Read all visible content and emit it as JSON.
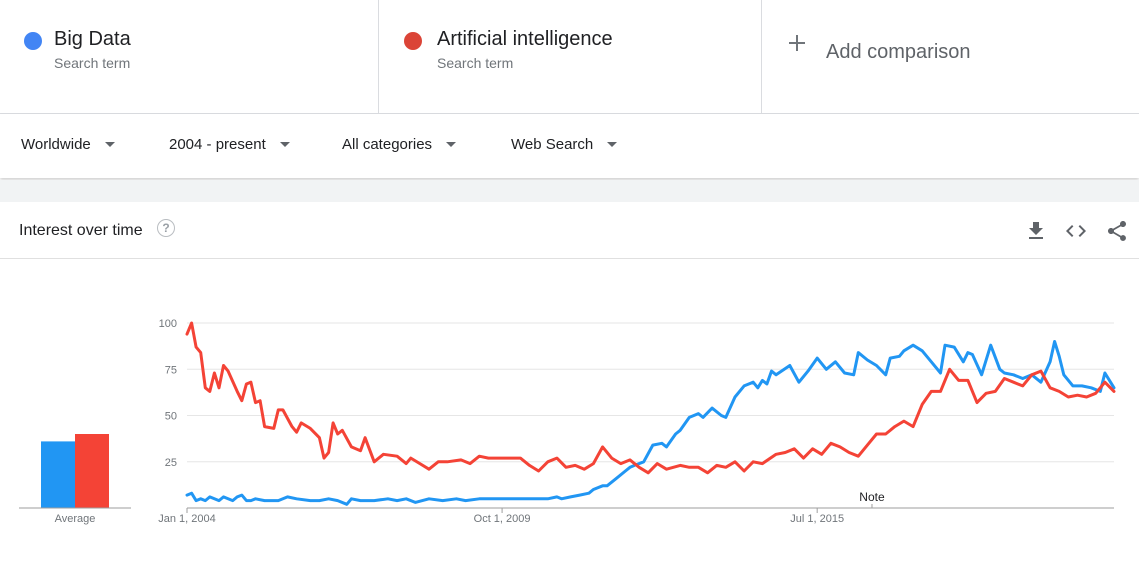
{
  "terms": [
    {
      "name": "Big Data",
      "subtitle": "Search term",
      "color": "#4285f4"
    },
    {
      "name": "Artificial intelligence",
      "subtitle": "Search term",
      "color": "#db4437"
    }
  ],
  "add_comparison": "Add comparison",
  "filters": {
    "region": "Worldwide",
    "time": "2004 - present",
    "category": "All categories",
    "search_type": "Web Search"
  },
  "card": {
    "title": "Interest over time",
    "help_symbol": "?"
  },
  "icons": {
    "help": "help-icon",
    "download": "download-icon",
    "embed": "embed-code-icon",
    "share": "share-icon"
  },
  "chart_data": {
    "type": "line",
    "x_unit": "month",
    "x_start": "2004-01",
    "x_end": "2019-01",
    "ylim": [
      0,
      100
    ],
    "yticks": [
      25,
      50,
      75,
      100
    ],
    "xticks": [
      {
        "label": "Jan 1, 2004",
        "month": "2004-01"
      },
      {
        "label": "Oct 1, 2009",
        "month": "2009-10"
      },
      {
        "label": "Jul 1, 2015",
        "month": "2015-07"
      }
    ],
    "annotation": {
      "label": "Note",
      "month": "2016-07"
    },
    "average_label": "Average",
    "averages": [
      {
        "series": "Big Data",
        "value": 36
      },
      {
        "series": "Artificial intelligence",
        "value": 40
      }
    ],
    "grid": true,
    "series": [
      {
        "name": "Big Data",
        "color": "#2196f3",
        "points": [
          [
            "2004-01",
            7
          ],
          [
            "2004-02",
            8
          ],
          [
            "2004-03",
            4
          ],
          [
            "2004-04",
            5
          ],
          [
            "2004-05",
            4
          ],
          [
            "2004-06",
            6
          ],
          [
            "2004-07",
            5
          ],
          [
            "2004-08",
            4
          ],
          [
            "2004-09",
            6
          ],
          [
            "2004-10",
            5
          ],
          [
            "2004-11",
            4
          ],
          [
            "2004-12",
            6
          ],
          [
            "2005-01",
            7
          ],
          [
            "2005-02",
            4
          ],
          [
            "2005-03",
            4
          ],
          [
            "2005-04",
            5
          ],
          [
            "2005-06",
            4
          ],
          [
            "2005-09",
            4
          ],
          [
            "2005-11",
            6
          ],
          [
            "2006-01",
            5
          ],
          [
            "2006-04",
            4
          ],
          [
            "2006-06",
            4
          ],
          [
            "2006-08",
            5
          ],
          [
            "2006-10",
            4
          ],
          [
            "2006-12",
            2
          ],
          [
            "2007-01",
            5
          ],
          [
            "2007-03",
            4
          ],
          [
            "2007-06",
            4
          ],
          [
            "2007-09",
            5
          ],
          [
            "2007-11",
            4
          ],
          [
            "2008-01",
            5
          ],
          [
            "2008-03",
            3
          ],
          [
            "2008-06",
            5
          ],
          [
            "2008-09",
            4
          ],
          [
            "2008-12",
            5
          ],
          [
            "2009-02",
            4
          ],
          [
            "2009-05",
            5
          ],
          [
            "2009-08",
            5
          ],
          [
            "2009-11",
            5
          ],
          [
            "2010-02",
            5
          ],
          [
            "2010-05",
            5
          ],
          [
            "2010-08",
            5
          ],
          [
            "2010-10",
            6
          ],
          [
            "2010-11",
            5
          ],
          [
            "2011-01",
            6
          ],
          [
            "2011-03",
            7
          ],
          [
            "2011-05",
            8
          ],
          [
            "2011-06",
            10
          ],
          [
            "2011-08",
            12
          ],
          [
            "2011-09",
            12
          ],
          [
            "2011-11",
            16
          ],
          [
            "2012-01",
            20
          ],
          [
            "2012-02",
            22
          ],
          [
            "2012-03",
            23
          ],
          [
            "2012-05",
            25
          ],
          [
            "2012-07",
            34
          ],
          [
            "2012-09",
            35
          ],
          [
            "2012-10",
            33
          ],
          [
            "2012-12",
            40
          ],
          [
            "2013-01",
            42
          ],
          [
            "2013-03",
            49
          ],
          [
            "2013-05",
            51
          ],
          [
            "2013-06",
            49
          ],
          [
            "2013-08",
            54
          ],
          [
            "2013-10",
            50
          ],
          [
            "2013-11",
            49
          ],
          [
            "2014-01",
            60
          ],
          [
            "2014-03",
            66
          ],
          [
            "2014-05",
            68
          ],
          [
            "2014-06",
            65
          ],
          [
            "2014-07",
            69
          ],
          [
            "2014-08",
            67
          ],
          [
            "2014-09",
            74
          ],
          [
            "2014-10",
            72
          ],
          [
            "2015-01",
            77
          ],
          [
            "2015-03",
            68
          ],
          [
            "2015-05",
            74
          ],
          [
            "2015-07",
            81
          ],
          [
            "2015-09",
            75
          ],
          [
            "2015-11",
            79
          ],
          [
            "2016-01",
            73
          ],
          [
            "2016-03",
            72
          ],
          [
            "2016-04",
            84
          ],
          [
            "2016-06",
            80
          ],
          [
            "2016-08",
            77
          ],
          [
            "2016-10",
            72
          ],
          [
            "2016-11",
            81
          ],
          [
            "2017-01",
            82
          ],
          [
            "2017-02",
            85
          ],
          [
            "2017-04",
            88
          ],
          [
            "2017-06",
            85
          ],
          [
            "2017-08",
            79
          ],
          [
            "2017-10",
            73
          ],
          [
            "2017-11",
            88
          ],
          [
            "2018-01",
            87
          ],
          [
            "2018-03",
            79
          ],
          [
            "2018-04",
            84
          ],
          [
            "2018-05",
            83
          ],
          [
            "2018-07",
            72
          ],
          [
            "2018-09",
            88
          ],
          [
            "2018-11",
            75
          ],
          [
            "2018-12",
            73
          ],
          [
            "2019-02",
            72
          ],
          [
            "2019-04",
            70
          ],
          [
            "2019-06",
            72
          ],
          [
            "2019-08",
            68
          ],
          [
            "2019-10",
            79
          ],
          [
            "2019-11",
            90
          ],
          [
            "2019-12",
            82
          ],
          [
            "2020-01",
            72
          ],
          [
            "2020-03",
            66
          ],
          [
            "2020-05",
            66
          ],
          [
            "2020-07",
            65
          ],
          [
            "2020-09",
            63
          ],
          [
            "2020-10",
            73
          ],
          [
            "2020-12",
            65
          ]
        ]
      },
      {
        "name": "Artificial intelligence",
        "color": "#f44336",
        "points": [
          [
            "2004-01",
            94
          ],
          [
            "2004-02",
            100
          ],
          [
            "2004-03",
            87
          ],
          [
            "2004-04",
            84
          ],
          [
            "2004-05",
            65
          ],
          [
            "2004-06",
            63
          ],
          [
            "2004-07",
            73
          ],
          [
            "2004-08",
            65
          ],
          [
            "2004-09",
            77
          ],
          [
            "2004-10",
            74
          ],
          [
            "2004-12",
            63
          ],
          [
            "2005-01",
            58
          ],
          [
            "2005-02",
            67
          ],
          [
            "2005-03",
            68
          ],
          [
            "2005-04",
            57
          ],
          [
            "2005-05",
            58
          ],
          [
            "2005-06",
            44
          ],
          [
            "2005-08",
            43
          ],
          [
            "2005-09",
            53
          ],
          [
            "2005-10",
            53
          ],
          [
            "2005-12",
            44
          ],
          [
            "2006-01",
            41
          ],
          [
            "2006-02",
            46
          ],
          [
            "2006-04",
            43
          ],
          [
            "2006-06",
            38
          ],
          [
            "2006-07",
            27
          ],
          [
            "2006-08",
            30
          ],
          [
            "2006-09",
            46
          ],
          [
            "2006-10",
            40
          ],
          [
            "2006-11",
            42
          ],
          [
            "2007-01",
            33
          ],
          [
            "2007-03",
            31
          ],
          [
            "2007-04",
            38
          ],
          [
            "2007-06",
            25
          ],
          [
            "2007-08",
            29
          ],
          [
            "2007-11",
            28
          ],
          [
            "2008-01",
            24
          ],
          [
            "2008-02",
            27
          ],
          [
            "2008-04",
            24
          ],
          [
            "2008-06",
            21
          ],
          [
            "2008-08",
            25
          ],
          [
            "2008-10",
            25
          ],
          [
            "2009-01",
            26
          ],
          [
            "2009-03",
            24
          ],
          [
            "2009-05",
            28
          ],
          [
            "2009-07",
            27
          ],
          [
            "2009-09",
            27
          ],
          [
            "2009-12",
            27
          ],
          [
            "2010-02",
            27
          ],
          [
            "2010-04",
            23
          ],
          [
            "2010-06",
            20
          ],
          [
            "2010-08",
            25
          ],
          [
            "2010-10",
            27
          ],
          [
            "2010-12",
            22
          ],
          [
            "2011-02",
            23
          ],
          [
            "2011-04",
            21
          ],
          [
            "2011-06",
            24
          ],
          [
            "2011-08",
            33
          ],
          [
            "2011-10",
            27
          ],
          [
            "2011-12",
            24
          ],
          [
            "2012-02",
            26
          ],
          [
            "2012-04",
            22
          ],
          [
            "2012-06",
            19
          ],
          [
            "2012-08",
            24
          ],
          [
            "2012-10",
            21
          ],
          [
            "2013-01",
            23
          ],
          [
            "2013-03",
            22
          ],
          [
            "2013-05",
            22
          ],
          [
            "2013-07",
            19
          ],
          [
            "2013-09",
            23
          ],
          [
            "2013-11",
            22
          ],
          [
            "2014-01",
            25
          ],
          [
            "2014-03",
            20
          ],
          [
            "2014-05",
            25
          ],
          [
            "2014-07",
            24
          ],
          [
            "2014-10",
            29
          ],
          [
            "2014-12",
            30
          ],
          [
            "2015-02",
            32
          ],
          [
            "2015-04",
            27
          ],
          [
            "2015-06",
            32
          ],
          [
            "2015-08",
            29
          ],
          [
            "2015-10",
            35
          ],
          [
            "2015-12",
            33
          ],
          [
            "2016-02",
            30
          ],
          [
            "2016-04",
            28
          ],
          [
            "2016-06",
            34
          ],
          [
            "2016-08",
            40
          ],
          [
            "2016-10",
            40
          ],
          [
            "2016-12",
            44
          ],
          [
            "2017-02",
            47
          ],
          [
            "2017-04",
            44
          ],
          [
            "2017-06",
            56
          ],
          [
            "2017-08",
            63
          ],
          [
            "2017-10",
            63
          ],
          [
            "2017-12",
            75
          ],
          [
            "2018-02",
            69
          ],
          [
            "2018-04",
            69
          ],
          [
            "2018-06",
            57
          ],
          [
            "2018-08",
            62
          ],
          [
            "2018-10",
            63
          ],
          [
            "2018-12",
            70
          ],
          [
            "2019-02",
            68
          ],
          [
            "2019-04",
            66
          ],
          [
            "2019-06",
            72
          ],
          [
            "2019-08",
            74
          ],
          [
            "2019-10",
            65
          ],
          [
            "2019-12",
            63
          ],
          [
            "2020-02",
            60
          ],
          [
            "2020-04",
            61
          ],
          [
            "2020-06",
            60
          ],
          [
            "2020-08",
            62
          ],
          [
            "2020-10",
            68
          ],
          [
            "2020-12",
            63
          ]
        ]
      }
    ]
  }
}
